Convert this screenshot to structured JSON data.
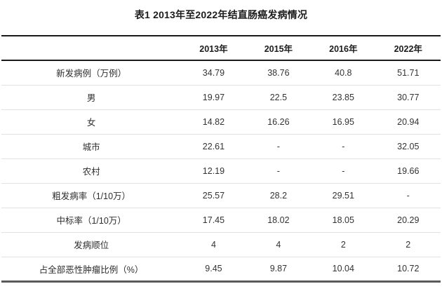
{
  "title": "表1 2013年至2022年结直肠癌发病情况",
  "table": {
    "columns": [
      "",
      "2013年",
      "2015年",
      "2016年",
      "2022年"
    ],
    "rows": [
      {
        "label": "新发病例（万例）",
        "values": [
          "34.79",
          "38.76",
          "40.8",
          "51.71"
        ]
      },
      {
        "label": "男",
        "values": [
          "19.97",
          "22.5",
          "23.85",
          "30.77"
        ]
      },
      {
        "label": "女",
        "values": [
          "14.82",
          "16.26",
          "16.95",
          "20.94"
        ]
      },
      {
        "label": "城市",
        "values": [
          "22.61",
          "-",
          "-",
          "32.05"
        ]
      },
      {
        "label": "农村",
        "values": [
          "12.19",
          "-",
          "-",
          "19.66"
        ]
      },
      {
        "label": "粗发病率（1/10万）",
        "values": [
          "25.57",
          "28.2",
          "29.51",
          "-"
        ]
      },
      {
        "label": "中标率（1/10万）",
        "values": [
          "17.45",
          "18.02",
          "18.05",
          "20.29"
        ]
      },
      {
        "label": "发病顺位",
        "values": [
          "4",
          "4",
          "2",
          "2"
        ]
      },
      {
        "label": "占全部恶性肿瘤比例（%）",
        "values": [
          "9.45",
          "9.87",
          "10.04",
          "10.72"
        ]
      }
    ]
  },
  "colors": {
    "rule_dark": "#1a1a1a",
    "rule_bottom": "#5a5a5a",
    "row_separator": "#e2e2e2",
    "text": "#333333",
    "title_text": "#1c1c1c"
  }
}
